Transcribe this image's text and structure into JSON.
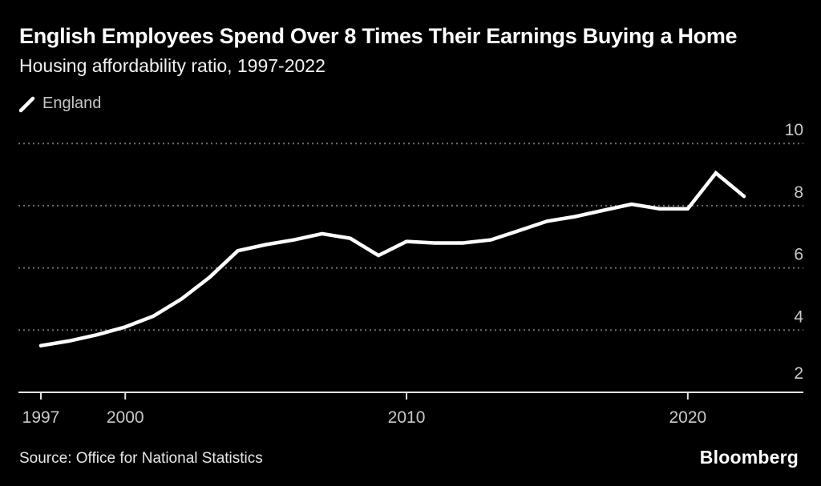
{
  "header": {
    "title": "English Employees Spend Over 8 Times Their Earnings Buying a Home",
    "subtitle": "Housing affordability ratio, 1997-2022"
  },
  "legend": {
    "marker": "line-swatch",
    "label": "England"
  },
  "chart_data": {
    "type": "line",
    "title": "English Employees Spend Over 8 Times Their Earnings Buying a Home",
    "subtitle": "Housing affordability ratio, 1997-2022",
    "x": [
      1997,
      1998,
      1999,
      2000,
      2001,
      2002,
      2003,
      2004,
      2005,
      2006,
      2007,
      2008,
      2009,
      2010,
      2011,
      2012,
      2013,
      2014,
      2015,
      2016,
      2017,
      2018,
      2019,
      2020,
      2021,
      2022
    ],
    "series": [
      {
        "name": "England",
        "values": [
          3.5,
          3.65,
          3.85,
          4.1,
          4.45,
          5.0,
          5.7,
          6.55,
          6.75,
          6.9,
          7.1,
          6.95,
          6.4,
          6.85,
          6.8,
          6.8,
          6.9,
          7.2,
          7.5,
          7.65,
          7.85,
          8.05,
          7.9,
          7.9,
          9.05,
          8.3
        ]
      }
    ],
    "xlim": [
      1997,
      2022
    ],
    "ylim": [
      2,
      10
    ],
    "x_tick_years": [
      1997,
      2000,
      2010,
      2020
    ],
    "x_tick_labels": [
      "1997",
      "2000",
      "2010",
      "2020"
    ],
    "y_ticks": [
      {
        "value": 2,
        "label": "2"
      },
      {
        "value": 4,
        "label": "4"
      },
      {
        "value": 6,
        "label": "6"
      },
      {
        "value": 8,
        "label": "8"
      },
      {
        "value": 10,
        "label": "10"
      }
    ],
    "grid": "horizontal-dotted",
    "legend_position": "top-left",
    "axis_side": "right",
    "colors": {
      "background": "#000000",
      "line": "#ffffff",
      "gridline": "#6e6e6e",
      "axis": "#e2e2e2",
      "tick_label": "#c9c9c9"
    }
  },
  "footer": {
    "source": "Source: Office for National Statistics",
    "brand": "Bloomberg"
  }
}
